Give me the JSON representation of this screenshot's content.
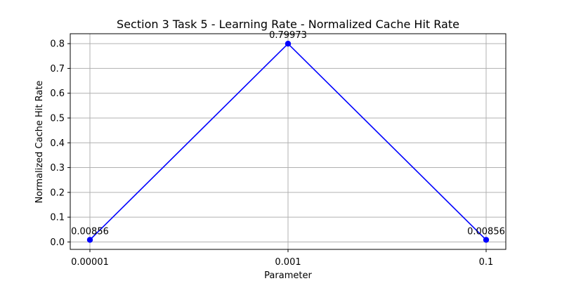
{
  "chart_data": {
    "type": "line",
    "title": "Section 3 Task 5 - Learning Rate - Normalized Cache Hit Rate",
    "xlabel": "Parameter",
    "ylabel": "Normalized Cache Hit Rate",
    "categories": [
      "0.00001",
      "0.001",
      "0.1"
    ],
    "series": [
      {
        "values": [
          0.00856,
          0.79973,
          0.00856
        ],
        "labels": [
          "0.00856",
          "0.79973",
          "0.00856"
        ],
        "color": "#0000ff"
      }
    ],
    "ylim": [
      -0.03,
      0.84
    ],
    "yticks": [
      "0.0",
      "0.1",
      "0.2",
      "0.3",
      "0.4",
      "0.5",
      "0.6",
      "0.7",
      "0.8"
    ],
    "grid": true,
    "legend": "none"
  }
}
